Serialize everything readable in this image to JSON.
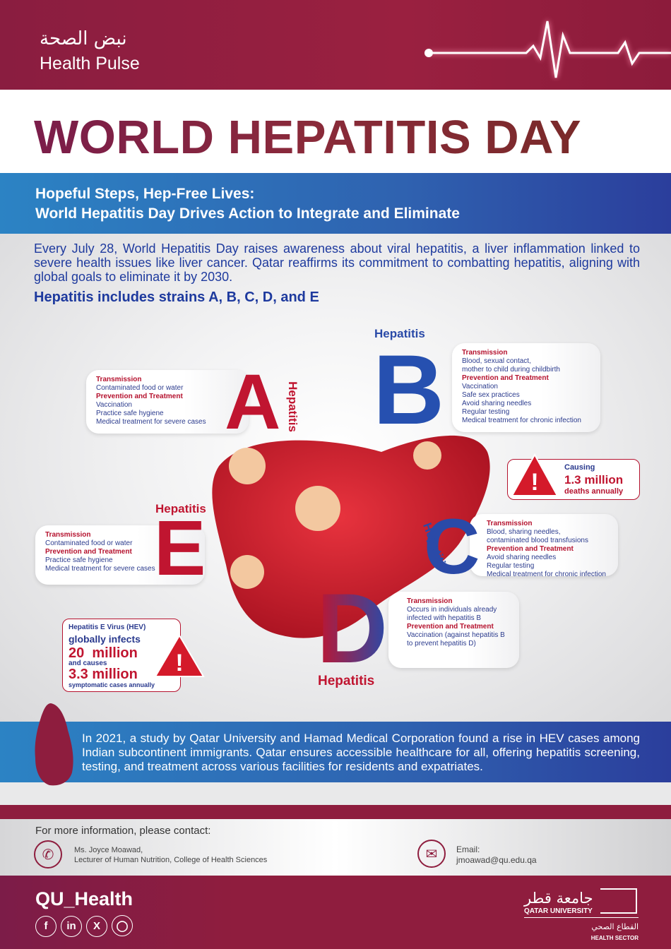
{
  "header": {
    "logo_arabic": "نبض الصحة",
    "logo_english": "Health Pulse"
  },
  "title": "WORLD HEPATITIS DAY",
  "subtitle": {
    "line1": "Hopeful Steps, Hep-Free Lives:",
    "line2": "World Hepatitis Day Drives Action to Integrate and Eliminate"
  },
  "intro": "Every July 28, World Hepatitis Day raises awareness about viral hepatitis, a liver inflammation linked to severe health issues like liver cancer. Qatar reaffirms its commitment to combatting hepatitis, aligning with global goals to eliminate it by 2030.",
  "strains": "Hepatitis includes strains A, B, C, D, and E",
  "hepatitis_label": "Hepatitis",
  "transmission_label": "Transmission",
  "prevention_label": "Prevention and Treatment",
  "types": {
    "A": {
      "letter": "A",
      "transmission": [
        "Contaminated food or water"
      ],
      "prevention": [
        "Vaccination",
        "Practice safe hygiene",
        "Medical treatment for severe cases"
      ]
    },
    "B": {
      "letter": "B",
      "transmission": [
        "Blood, sexual contact,",
        "mother to child during childbirth"
      ],
      "prevention": [
        "Vaccination",
        "Safe sex practices",
        "Avoid sharing needles",
        "Regular testing",
        "Medical treatment for chronic infection"
      ]
    },
    "C": {
      "letter": "C",
      "transmission": [
        "Blood, sharing needles,",
        "contaminated blood transfusions"
      ],
      "prevention": [
        "Avoid sharing needles",
        "Regular testing",
        "Medical treatment for chronic infection"
      ]
    },
    "D": {
      "letter": "D",
      "transmission": [
        "Occurs in individuals already",
        "infected with hepatitis B"
      ],
      "prevention": [
        "Vaccination (against hepatitis B",
        "to prevent hepatitis D)"
      ]
    },
    "E": {
      "letter": "E",
      "transmission": [
        "Contaminated food or water"
      ],
      "prevention": [
        "Practice safe hygiene",
        "Medical treatment for severe cases"
      ]
    }
  },
  "bc_stat": {
    "causing": "Causing",
    "value": "1.3 million",
    "suffix": "deaths annually"
  },
  "e_stat": {
    "label": "Hepatitis E Virus (HEV)",
    "infects": "globally infects",
    "value1": "20  million",
    "causes": "and causes",
    "value2": "3.3 million",
    "suffix": "symptomatic cases annually"
  },
  "qatar_note": "In 2021, a study by Qatar University and Hamad Medical Corporation found a rise in HEV cases among Indian subcontinent immigrants. Qatar ensures accessible healthcare for all, offering hepatitis screening, testing, and treatment across various facilities for residents and expatriates.",
  "contact": {
    "heading": "For more information, please contact:",
    "name": "Ms. Joyce Moawad,",
    "role": "Lecturer of Human Nutrition, College of Health Sciences",
    "email_label": "Email:",
    "email": "jmoawad@qu.edu.qa"
  },
  "footer": {
    "handle": "QU_Health",
    "social": [
      "facebook-icon",
      "linkedin-icon",
      "x-icon",
      "instagram-icon"
    ],
    "qu_arabic": "جامعة قطر",
    "qu_english": "QATAR UNIVERSITY",
    "sector_arabic": "القطاع الصحي",
    "sector_english": "HEALTH SECTOR"
  },
  "colors": {
    "maroon": "#8e1d3e",
    "blue": "#2f62b0",
    "red": "#c01530",
    "text_blue": "#1e3a9e"
  }
}
